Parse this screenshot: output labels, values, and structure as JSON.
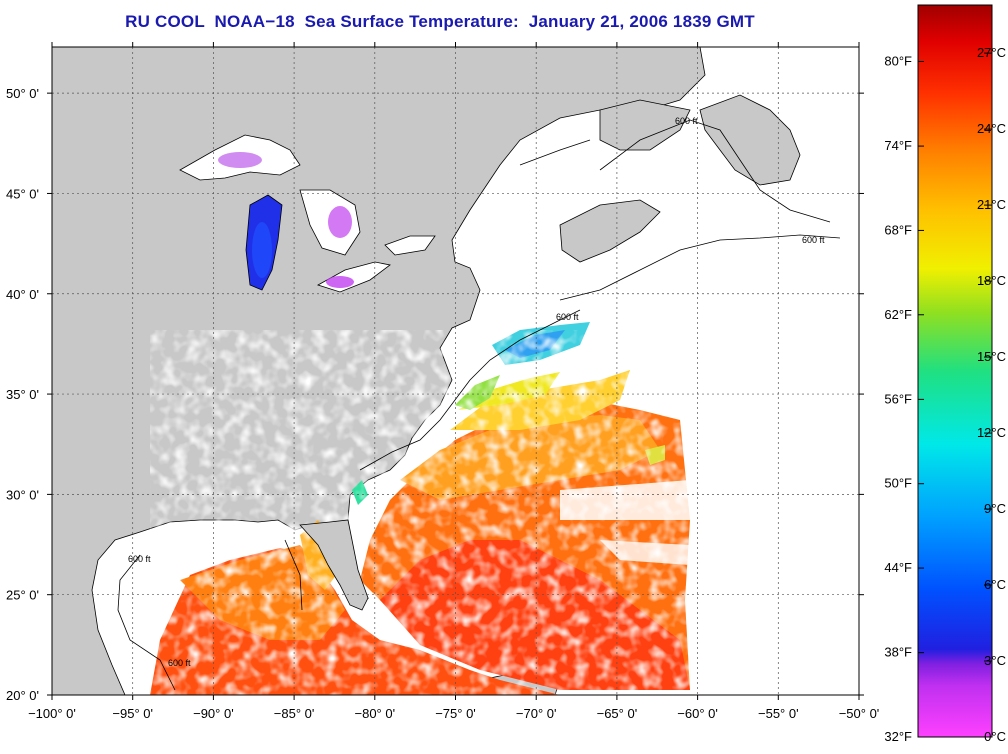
{
  "title": "RU COOL  NOAA−18  Sea Surface Temperature:  January 21, 2006 1839 GMT",
  "map": {
    "lon_range": [
      -100,
      -50
    ],
    "lat_range": [
      20,
      52.3
    ],
    "lon_ticks": [
      {
        "value": -100,
        "label": "−100° 0'"
      },
      {
        "value": -95,
        "label": "−95° 0'"
      },
      {
        "value": -90,
        "label": "−90° 0'"
      },
      {
        "value": -85,
        "label": "−85° 0'"
      },
      {
        "value": -80,
        "label": "−80° 0'"
      },
      {
        "value": -75,
        "label": "−75° 0'"
      },
      {
        "value": -70,
        "label": "−70° 0'"
      },
      {
        "value": -65,
        "label": "−65° 0'"
      },
      {
        "value": -60,
        "label": "−60° 0'"
      },
      {
        "value": -55,
        "label": "−55° 0'"
      },
      {
        "value": -50,
        "label": "−50° 0'"
      }
    ],
    "lat_ticks": [
      {
        "value": 20,
        "label": "20° 0'"
      },
      {
        "value": 25,
        "label": "25° 0'"
      },
      {
        "value": 30,
        "label": "30° 0'"
      },
      {
        "value": 35,
        "label": "35° 0'"
      },
      {
        "value": 40,
        "label": "40° 0'"
      },
      {
        "value": 45,
        "label": "45° 0'"
      },
      {
        "value": 50,
        "label": "50° 0'"
      }
    ],
    "contour_label": "600 ft",
    "colors": {
      "land": "#c8c8c8",
      "water": "#ffffff",
      "grid": "#555555"
    }
  },
  "colorbar": {
    "celsius_range": [
      0,
      28.9
    ],
    "celsius_labels": [
      {
        "value": 0,
        "label": "0°C"
      },
      {
        "value": 3,
        "label": "3°C"
      },
      {
        "value": 6,
        "label": "6°C"
      },
      {
        "value": 9,
        "label": "9°C"
      },
      {
        "value": 12,
        "label": "12°C"
      },
      {
        "value": 15,
        "label": "15°C"
      },
      {
        "value": 18,
        "label": "18°C"
      },
      {
        "value": 21,
        "label": "21°C"
      },
      {
        "value": 24,
        "label": "24°C"
      },
      {
        "value": 27,
        "label": "27°C"
      }
    ],
    "fahrenheit_labels": [
      {
        "value": 0,
        "label": "32°F"
      },
      {
        "value": 3.33,
        "label": "38°F"
      },
      {
        "value": 6.67,
        "label": "44°F"
      },
      {
        "value": 10,
        "label": "50°F"
      },
      {
        "value": 13.33,
        "label": "56°F"
      },
      {
        "value": 16.67,
        "label": "62°F"
      },
      {
        "value": 20,
        "label": "68°F"
      },
      {
        "value": 23.33,
        "label": "74°F"
      },
      {
        "value": 26.67,
        "label": "80°F"
      }
    ],
    "stops": [
      "#ff40ff",
      "#a020f0",
      "#2020e0",
      "#0060ff",
      "#00b0ff",
      "#00e8e8",
      "#20e080",
      "#90e020",
      "#f0f000",
      "#ffc000",
      "#ff8000",
      "#ff3000",
      "#e00000",
      "#a00000"
    ]
  }
}
